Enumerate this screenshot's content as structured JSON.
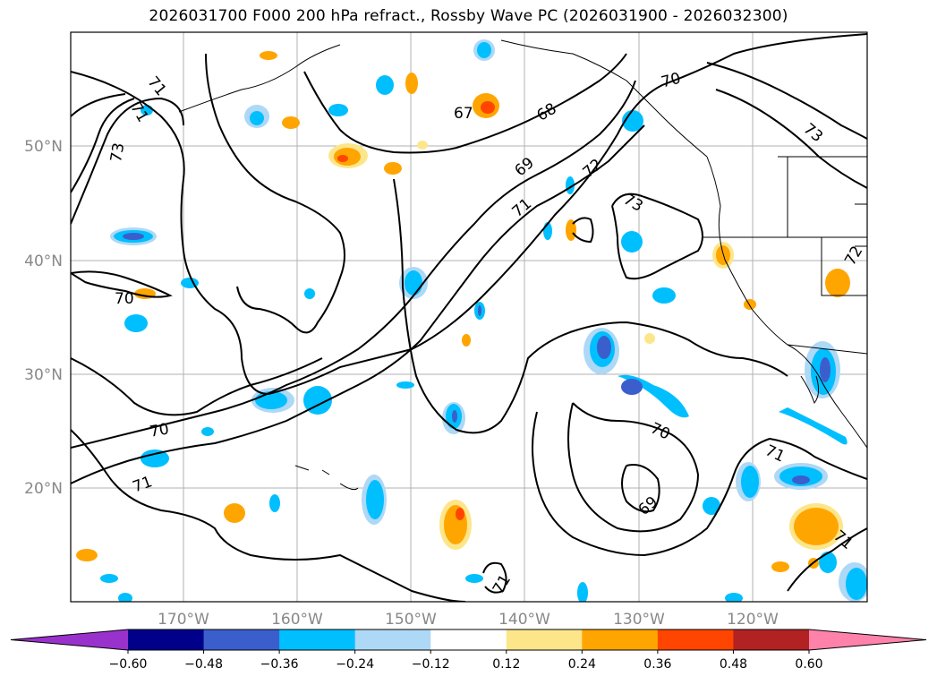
{
  "title": "2026031700 F000 200 hPa refract., Rossby Wave PC (2026031900 - 2026032300)",
  "lat_labels": [
    "20°N",
    "30°N",
    "40°N",
    "50°N"
  ],
  "lon_labels": [
    "170°W",
    "160°W",
    "150°W",
    "140°W",
    "130°W",
    "120°W"
  ],
  "contour_labels": [
    "67",
    "68",
    "69",
    "70",
    "70",
    "70",
    "70",
    "71",
    "71",
    "71",
    "71",
    "71",
    "71",
    "71",
    "72",
    "72",
    "73",
    "73",
    "73",
    "69"
  ],
  "colorbar": {
    "ticks": [
      "−0.60",
      "−0.48",
      "−0.36",
      "−0.24",
      "−0.12",
      "0.12",
      "0.24",
      "0.36",
      "0.48",
      "0.60"
    ],
    "colors": [
      "#9932cc",
      "#00008b",
      "#3a5fcd",
      "#00bfff",
      "#add8f6",
      "#ffffff",
      "#fde68a",
      "#ffa500",
      "#ff4500",
      "#b22222",
      "#ff82ab"
    ]
  }
}
